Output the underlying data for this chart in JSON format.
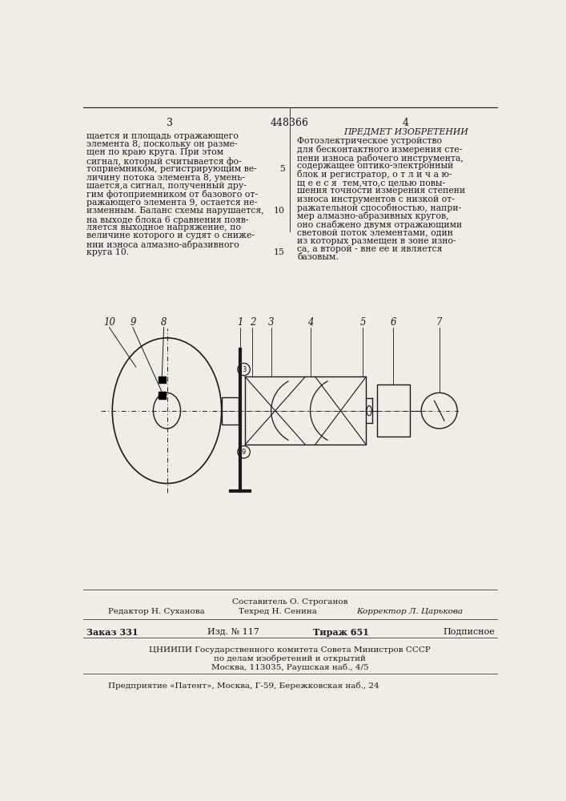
{
  "patent_number": "448366",
  "page_left": "3",
  "page_right": "4",
  "bg_color": "#f0ede6",
  "text_color": "#1a1a1a",
  "left_column_text": [
    "щается и площадь отражающего",
    "элемента 8, поскольку он разме-",
    "щен по краю круга. При этом",
    "сигнал, который считывается фо-",
    "топриемником, регистрирующим ве-",
    "личину потока элемента 8, умень-",
    "шается,а сигнал, полученный дру-",
    "гим фотоприемником от базового от-",
    "ражающего элемента 9, остается не-",
    "изменным. Баланс схемы нарушается,",
    "на выходе блока 6 сравнения появ-",
    "ляется выходное напряжение, по",
    "величине которого и судят о сниже-",
    "нии износа алмазно-абразивного",
    "круга 10."
  ],
  "right_column_header": "ПРЕДМЕТ ИЗОБРЕТЕНИИ",
  "right_column_text": [
    "Фотоэлектрическое устройство",
    "для бесконтактного измерения сте-",
    "пени износа рабочего инструмента,",
    "содержащее оптико-электронный",
    "блок и регистратор, о т л и ч а ю-",
    "щ е е с я  тем,что,с целью повы-",
    "шения точности измерения степени",
    "износа инструментов с низкой от-",
    "ражательной способностью, напри-",
    "мер алмазно-абразивных кругов,",
    "оно снабжено двумя отражающими",
    "световой поток элементами, один",
    "из которых размещен в зоне изно-",
    "са, а второй - вне ее и является",
    "базовым."
  ],
  "footer_compiler": "Составитель О. Строганов",
  "footer_editor": "Редактор Н. Суханова",
  "footer_tech": "Техред Н. Сенина",
  "footer_corrector": "Корректор Л. Царькова",
  "footer_order": "331",
  "footer_issue": "117",
  "footer_copies": "651",
  "footer_subscription": "Подписное",
  "footer_tsniipii": "ЦНИИПИ Государственного комитета Совета Министров СССР",
  "footer_tsniipii2": "по делам изобретений и открытий",
  "footer_address": "Москва, 113035, Раушская наб., 4/5",
  "footer_enterprise": "Предприятие «Патент», Москва, Г-59, Бережковская наб., 24"
}
